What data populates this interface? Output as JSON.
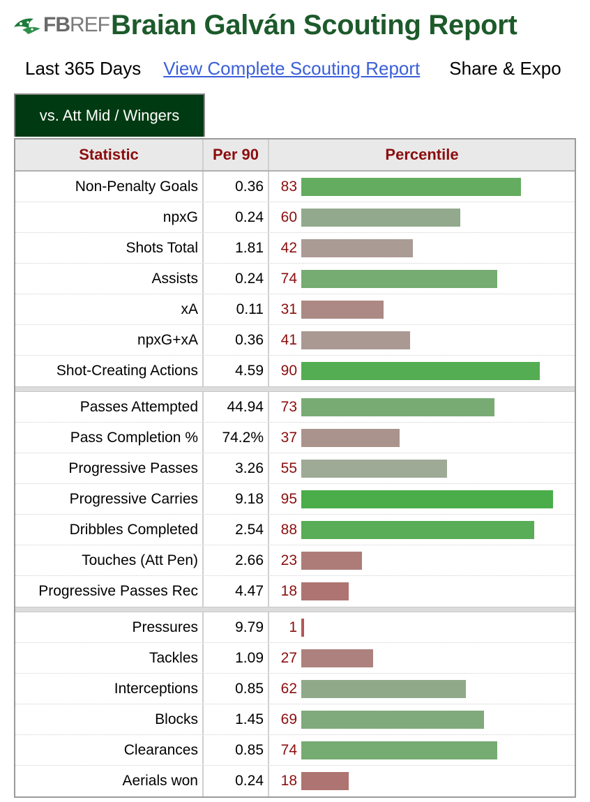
{
  "header": {
    "logo_fb": "FB",
    "logo_ref": "REF",
    "title": "Braian Galván Scouting Report"
  },
  "filters": {
    "period": "Last 365 Days",
    "complete_link": "View Complete Scouting Report",
    "share_export": "Share & Expo"
  },
  "tab": {
    "label": "vs. Att Mid / Wingers"
  },
  "table": {
    "headers": {
      "statistic": "Statistic",
      "per90": "Per 90",
      "percentile": "Percentile"
    },
    "groups": [
      [
        {
          "stat": "Non-Penalty Goals",
          "per90": "0.36",
          "percentile": 83
        },
        {
          "stat": "npxG",
          "per90": "0.24",
          "percentile": 60
        },
        {
          "stat": "Shots Total",
          "per90": "1.81",
          "percentile": 42
        },
        {
          "stat": "Assists",
          "per90": "0.24",
          "percentile": 74
        },
        {
          "stat": "xA",
          "per90": "0.11",
          "percentile": 31
        },
        {
          "stat": "npxG+xA",
          "per90": "0.36",
          "percentile": 41
        },
        {
          "stat": "Shot-Creating Actions",
          "per90": "4.59",
          "percentile": 90
        }
      ],
      [
        {
          "stat": "Passes Attempted",
          "per90": "44.94",
          "percentile": 73
        },
        {
          "stat": "Pass Completion %",
          "per90": "74.2%",
          "percentile": 37
        },
        {
          "stat": "Progressive Passes",
          "per90": "3.26",
          "percentile": 55
        },
        {
          "stat": "Progressive Carries",
          "per90": "9.18",
          "percentile": 95
        },
        {
          "stat": "Dribbles Completed",
          "per90": "2.54",
          "percentile": 88
        },
        {
          "stat": "Touches (Att Pen)",
          "per90": "2.66",
          "percentile": 23
        },
        {
          "stat": "Progressive Passes Rec",
          "per90": "4.47",
          "percentile": 18
        }
      ],
      [
        {
          "stat": "Pressures",
          "per90": "9.79",
          "percentile": 1
        },
        {
          "stat": "Tackles",
          "per90": "1.09",
          "percentile": 27
        },
        {
          "stat": "Interceptions",
          "per90": "0.85",
          "percentile": 62
        },
        {
          "stat": "Blocks",
          "per90": "1.45",
          "percentile": 69
        },
        {
          "stat": "Clearances",
          "per90": "0.85",
          "percentile": 74
        },
        {
          "stat": "Aerials won",
          "per90": "0.24",
          "percentile": 18
        }
      ]
    ]
  },
  "colors": {
    "title_green": "#1d5a2b",
    "tab_bg": "#003a12",
    "header_text": "#8b0e0e",
    "link": "#3a5fd8"
  }
}
